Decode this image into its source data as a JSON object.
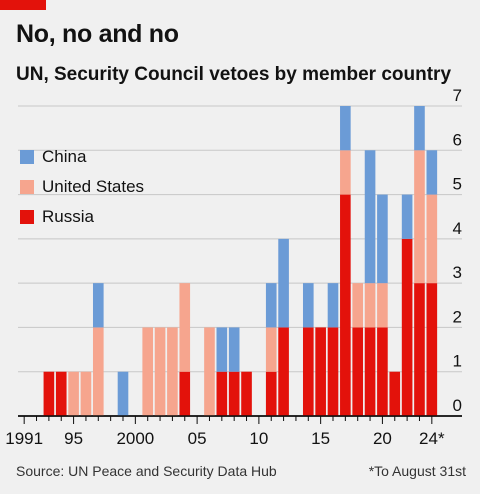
{
  "header": {
    "title": "No, no and no",
    "subtitle": "UN, Security Council vetoes by member country",
    "accent_color": "#e3120b"
  },
  "footer": {
    "source": "Source: UN Peace and Security Data Hub",
    "note": "*To August 31st"
  },
  "chart_data": {
    "type": "bar",
    "stacked": true,
    "categories": [
      "1991",
      "1992",
      "1993",
      "1994",
      "1995",
      "1996",
      "1997",
      "1998",
      "1999",
      "2000",
      "2001",
      "2002",
      "2003",
      "2004",
      "2005",
      "2006",
      "2007",
      "2008",
      "2009",
      "2010",
      "2011",
      "2012",
      "2013",
      "2014",
      "2015",
      "2016",
      "2017",
      "2018",
      "2019",
      "2020",
      "2021",
      "2022",
      "2023",
      "2024"
    ],
    "series": [
      {
        "name": "Russia",
        "color": "#e3120b",
        "values": [
          0,
          0,
          1,
          1,
          0,
          0,
          0,
          0,
          0,
          0,
          0,
          0,
          0,
          1,
          0,
          0,
          1,
          1,
          1,
          0,
          1,
          2,
          0,
          2,
          2,
          2,
          5,
          2,
          2,
          2,
          1,
          4,
          3,
          3
        ]
      },
      {
        "name": "United States",
        "color": "#f6a58e",
        "values": [
          0,
          0,
          0,
          0,
          1,
          1,
          2,
          0,
          0,
          0,
          2,
          2,
          2,
          2,
          0,
          2,
          0,
          0,
          0,
          0,
          1,
          0,
          0,
          0,
          0,
          0,
          1,
          1,
          1,
          1,
          0,
          0,
          3,
          2
        ]
      },
      {
        "name": "China",
        "color": "#6b9bd6",
        "values": [
          0,
          0,
          0,
          0,
          0,
          0,
          1,
          0,
          1,
          0,
          0,
          0,
          0,
          0,
          0,
          0,
          1,
          1,
          0,
          0,
          1,
          2,
          0,
          1,
          0,
          1,
          1,
          0,
          3,
          2,
          0,
          1,
          1,
          1
        ]
      }
    ],
    "legend_order": [
      "China",
      "United States",
      "Russia"
    ],
    "legend_position": "top-left",
    "x_tick_labels": [
      "1991",
      "95",
      "2000",
      "05",
      "10",
      "15",
      "20",
      "24*"
    ],
    "y_ticks": [
      0,
      1,
      2,
      3,
      4,
      5,
      6,
      7
    ],
    "ylim": [
      0,
      7
    ],
    "y_axis_side": "right",
    "grid": true
  }
}
